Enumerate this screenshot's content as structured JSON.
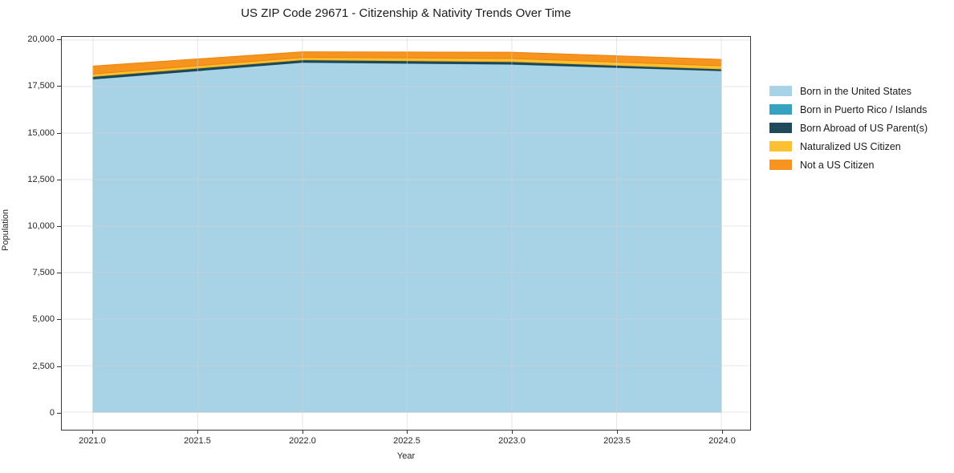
{
  "title": "US ZIP Code 29671 - Citizenship & Nativity Trends Over Time",
  "chart_data": {
    "type": "area",
    "stacked": true,
    "title": "US ZIP Code 29671 - Citizenship & Nativity Trends Over Time",
    "xlabel": "Year",
    "ylabel": "Population",
    "x": [
      2021,
      2022,
      2023,
      2024
    ],
    "series": [
      {
        "name": "Born in the United States",
        "color": "#a8d2e6",
        "edge": "#93c3da",
        "values": [
          17900,
          18800,
          18700,
          18350
        ]
      },
      {
        "name": "Born in Puerto Rico / Islands",
        "color": "#35a2bf",
        "edge": "#2e92ad",
        "values": [
          15,
          10,
          10,
          10
        ]
      },
      {
        "name": "Born Abroad of US Parent(s)",
        "color": "#204a5c",
        "edge": "#1b3f4f",
        "values": [
          130,
          130,
          130,
          90
        ]
      },
      {
        "name": "Naturalized US Citizen",
        "color": "#fcc132",
        "edge": "#edb01f",
        "values": [
          130,
          130,
          170,
          170
        ]
      },
      {
        "name": "Not a US Citizen",
        "color": "#f7941f",
        "edge": "#e8860d",
        "values": [
          430,
          300,
          340,
          340
        ]
      }
    ],
    "xlim": [
      2020.851,
      2024.138
    ],
    "ylim": [
      -945,
      20172
    ],
    "grid": true,
    "legend_position": "right",
    "yticks": {
      "values": [
        0,
        2500,
        5000,
        7500,
        10000,
        12500,
        15000,
        17500,
        20000
      ],
      "labels": [
        "0",
        "2,500",
        "5,000",
        "7,500",
        "10,000",
        "12,500",
        "15,000",
        "17,500",
        "20,000"
      ]
    },
    "xticks": {
      "values": [
        2021.0,
        2021.5,
        2022.0,
        2022.5,
        2023.0,
        2023.5,
        2024.0
      ],
      "labels": [
        "2021.0",
        "2021.5",
        "2022.0",
        "2022.5",
        "2023.0",
        "2023.5",
        "2024.0"
      ]
    }
  }
}
